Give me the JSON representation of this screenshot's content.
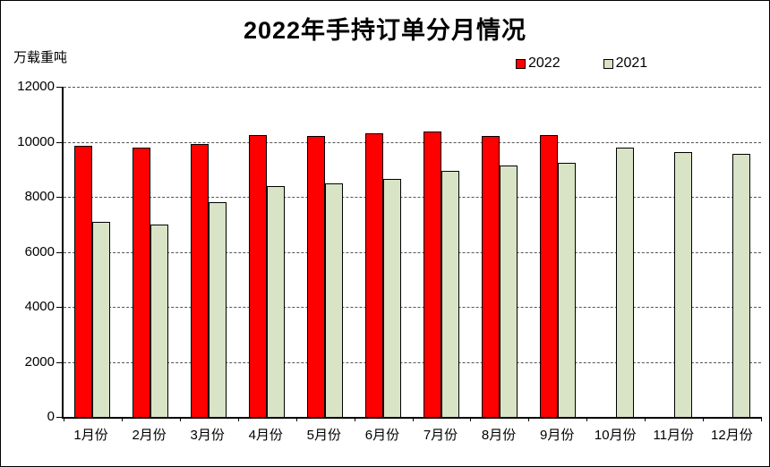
{
  "chart_data": {
    "type": "bar",
    "title": "2022年手持订单分月情况",
    "ylabel": "万载重吨",
    "xlabel": "",
    "categories": [
      "1月份",
      "2月份",
      "3月份",
      "4月份",
      "5月份",
      "6月份",
      "7月份",
      "8月份",
      "9月份",
      "10月份",
      "11月份",
      "12月份"
    ],
    "series": [
      {
        "name": "2022",
        "color": "#FF0000",
        "values": [
          9850,
          9790,
          9930,
          10250,
          10210,
          10320,
          10360,
          10200,
          10250,
          null,
          null,
          null
        ]
      },
      {
        "name": "2021",
        "color": "#D9E3C6",
        "values": [
          7080,
          7000,
          7810,
          8400,
          8490,
          8650,
          8940,
          9130,
          9250,
          9790,
          9620,
          9550
        ]
      }
    ],
    "ylim": [
      0,
      12000
    ],
    "ytick_step": 2000,
    "yticks": [
      0,
      2000,
      4000,
      6000,
      8000,
      10000,
      12000
    ],
    "grid": "horizontal-dashed",
    "legend_position": "top-right",
    "colors": {
      "bar_border": "#000000",
      "axis": "#000000",
      "gridline": "#555555",
      "background": "#FFFFFF"
    }
  }
}
